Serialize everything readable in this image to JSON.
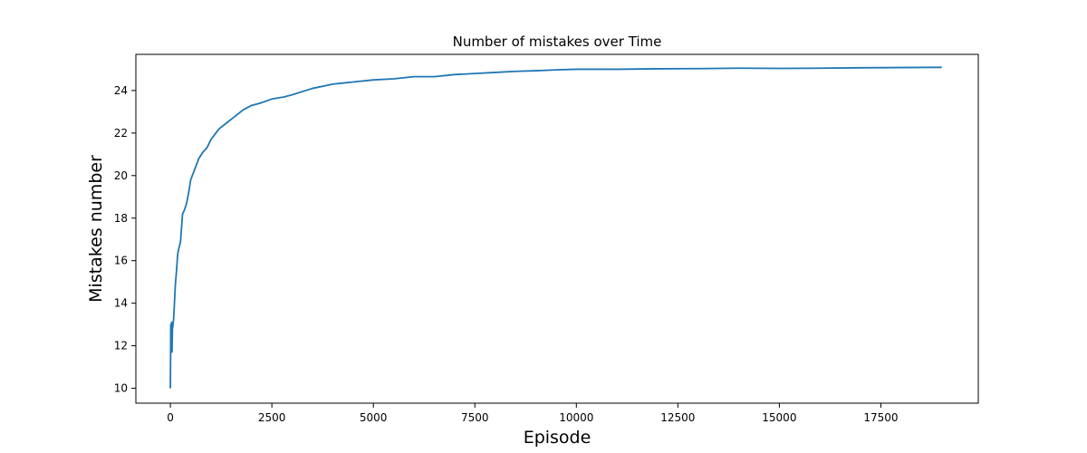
{
  "chart_data": {
    "type": "line",
    "title": "Number of mistakes over Time",
    "xlabel": "Episode",
    "ylabel": "Mistakes number",
    "xlim": [
      -850,
      19900
    ],
    "ylim": [
      9.3,
      25.7
    ],
    "xticks": [
      0,
      2500,
      5000,
      7500,
      10000,
      12500,
      15000,
      17500
    ],
    "xtick_labels": [
      "0",
      "2500",
      "5000",
      "7500",
      "10000",
      "12500",
      "15000",
      "17500"
    ],
    "yticks": [
      10,
      12,
      14,
      16,
      18,
      20,
      22,
      24
    ],
    "ytick_labels": [
      "10",
      "12",
      "14",
      "16",
      "18",
      "20",
      "22",
      "24"
    ],
    "grid": false,
    "legend": "none",
    "series": [
      {
        "color": "#1f77b4",
        "x": [
          0,
          10,
          20,
          30,
          40,
          50,
          60,
          80,
          100,
          120,
          150,
          180,
          200,
          250,
          300,
          350,
          400,
          450,
          500,
          600,
          700,
          800,
          900,
          1000,
          1200,
          1400,
          1600,
          1800,
          2000,
          2200,
          2500,
          2800,
          3000,
          3500,
          4000,
          4500,
          5000,
          5500,
          6000,
          6500,
          7000,
          7500,
          8000,
          8500,
          9000,
          9500,
          10000,
          11000,
          12000,
          13000,
          14000,
          15000,
          16000,
          17000,
          18000,
          19000
        ],
        "y": [
          10.0,
          13.0,
          12.1,
          13.1,
          11.7,
          12.8,
          12.9,
          13.3,
          14.0,
          14.8,
          15.5,
          16.3,
          16.5,
          16.9,
          18.2,
          18.4,
          18.7,
          19.2,
          19.8,
          20.3,
          20.8,
          21.1,
          21.3,
          21.7,
          22.2,
          22.5,
          22.8,
          23.1,
          23.3,
          23.4,
          23.6,
          23.7,
          23.8,
          24.1,
          24.3,
          24.4,
          24.5,
          24.55,
          24.65,
          24.65,
          24.75,
          24.8,
          24.85,
          24.9,
          24.93,
          24.97,
          25.0,
          25.0,
          25.02,
          25.03,
          25.05,
          25.04,
          25.05,
          25.07,
          25.08,
          25.09
        ]
      }
    ]
  }
}
